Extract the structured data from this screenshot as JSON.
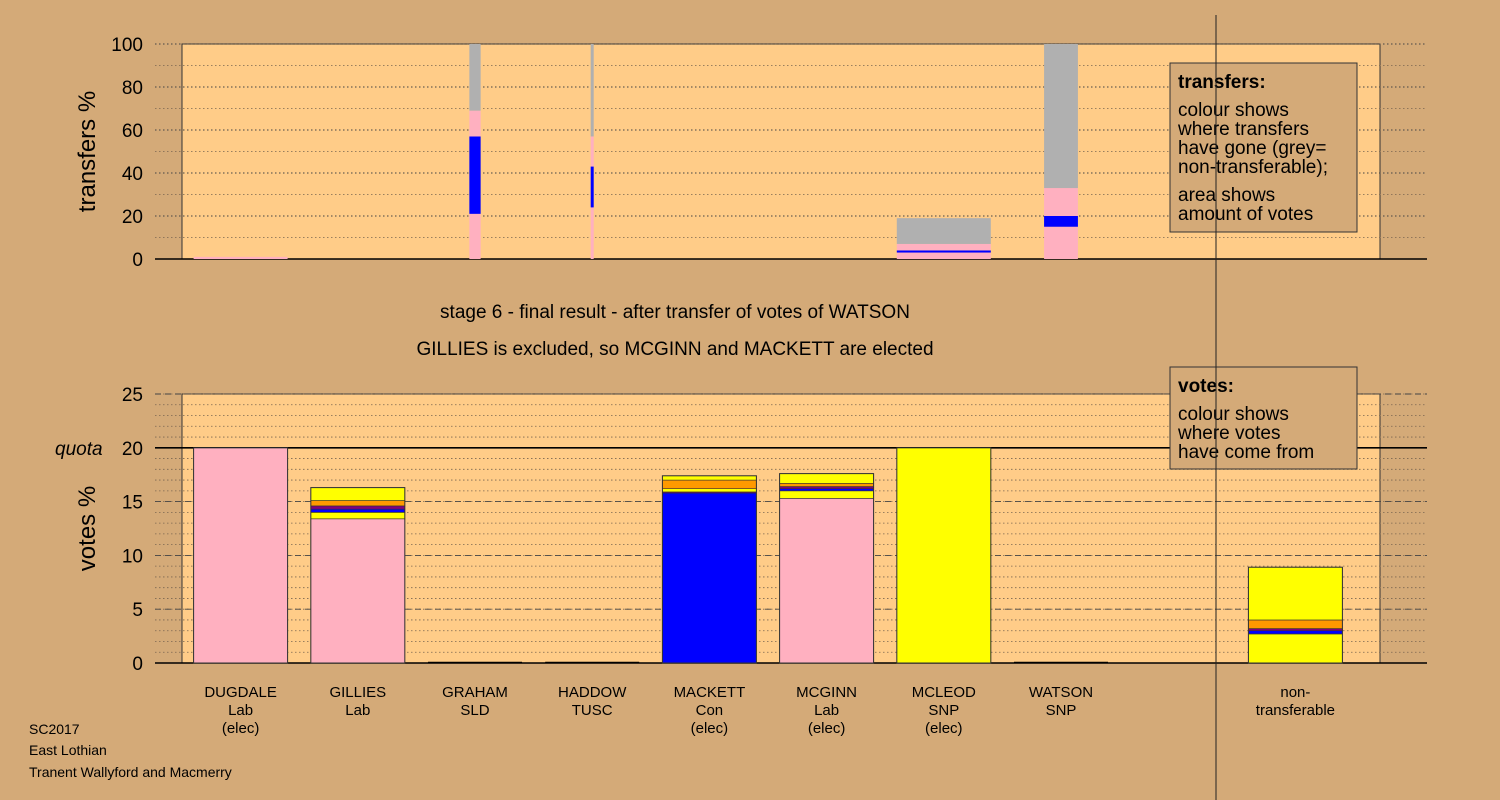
{
  "colors": {
    "background": "#d4aa78",
    "plot_bg": "#ffcc88",
    "Lab": "#ffb0c0",
    "Con": "#0000ff",
    "SNP": "#ffff00",
    "SLD": "#ff9900",
    "TUSC": "#800080",
    "nontransferable": "#b0b0b0"
  },
  "chart_data": [
    {
      "type": "bar",
      "name": "transfers",
      "ylabel": "transfers %",
      "ylim": [
        0,
        100
      ],
      "yticks": [
        "0",
        "20",
        "40",
        "60",
        "80",
        "100"
      ],
      "legend": {
        "title": "transfers:",
        "lines1": [
          "colour shows",
          "where transfers",
          "have gone (grey=",
          "non-transferable);"
        ],
        "lines2": [
          "area shows",
          "amount of votes"
        ]
      },
      "columns": [
        {
          "candidate": "DUGDALE",
          "width": 1.0,
          "segments": [
            {
              "party": "Lab",
              "from": 0,
              "to": 1
            }
          ]
        },
        {
          "candidate": "GRAHAM",
          "width": 0.12,
          "segments": [
            {
              "party": "Lab",
              "from": 0,
              "to": 21
            },
            {
              "party": "Con",
              "from": 21,
              "to": 57
            },
            {
              "party": "Lab",
              "from": 57,
              "to": 69
            },
            {
              "party": "nontransferable",
              "from": 69,
              "to": 100
            }
          ]
        },
        {
          "candidate": "HADDOW",
          "width": 0.03,
          "segments": [
            {
              "party": "Lab",
              "from": 0,
              "to": 24
            },
            {
              "party": "Con",
              "from": 24,
              "to": 43
            },
            {
              "party": "Lab",
              "from": 43,
              "to": 57
            },
            {
              "party": "nontransferable",
              "from": 57,
              "to": 100
            }
          ]
        },
        {
          "candidate": "MCLEOD",
          "width": 1.0,
          "segments": [
            {
              "party": "Lab",
              "from": 0,
              "to": 3
            },
            {
              "party": "Con",
              "from": 3,
              "to": 4
            },
            {
              "party": "Lab",
              "from": 4,
              "to": 7
            },
            {
              "party": "nontransferable",
              "from": 7,
              "to": 19
            }
          ]
        },
        {
          "candidate": "WATSON",
          "width": 0.36,
          "segments": [
            {
              "party": "Lab",
              "from": 0,
              "to": 15
            },
            {
              "party": "Con",
              "from": 15,
              "to": 20
            },
            {
              "party": "Lab",
              "from": 20,
              "to": 33
            },
            {
              "party": "nontransferable",
              "from": 33,
              "to": 100
            }
          ]
        }
      ]
    },
    {
      "type": "bar",
      "name": "votes",
      "ylabel": "votes %",
      "ylim": [
        0,
        25
      ],
      "yticks": [
        "0",
        "5",
        "10",
        "15",
        "20",
        "25"
      ],
      "quota": 20,
      "quota_label": "quota",
      "legend": {
        "title": "votes:",
        "lines1": [
          "colour shows",
          "where votes",
          "have come from"
        ],
        "lines2": []
      },
      "categories": [
        {
          "lines": [
            "DUGDALE",
            "Lab",
            "(elec)"
          ]
        },
        {
          "lines": [
            "GILLIES",
            "Lab"
          ]
        },
        {
          "lines": [
            "GRAHAM",
            "SLD"
          ]
        },
        {
          "lines": [
            "HADDOW",
            "TUSC"
          ]
        },
        {
          "lines": [
            "MACKETT",
            "Con",
            "(elec)"
          ]
        },
        {
          "lines": [
            "MCGINN",
            "Lab",
            "(elec)"
          ]
        },
        {
          "lines": [
            "MCLEOD",
            "SNP",
            "(elec)"
          ]
        },
        {
          "lines": [
            "WATSON",
            "SNP"
          ]
        },
        {
          "lines": []
        },
        {
          "lines": [
            "non-",
            "transferable"
          ]
        }
      ],
      "bars": [
        [
          {
            "party": "Lab",
            "value": 20.0
          }
        ],
        [
          {
            "party": "Lab",
            "value": 13.4
          },
          {
            "party": "SNP",
            "value": 0.6
          },
          {
            "party": "Con",
            "value": 0.3
          },
          {
            "party": "TUSC",
            "value": 0.3
          },
          {
            "party": "SLD",
            "value": 0.5
          },
          {
            "party": "SNP",
            "value": 1.2
          }
        ],
        [
          {
            "party": "SLD",
            "value": 0.0
          }
        ],
        [
          {
            "party": "TUSC",
            "value": 0.0
          }
        ],
        [
          {
            "party": "Con",
            "value": 15.8
          },
          {
            "party": "TUSC",
            "value": 0.1
          },
          {
            "party": "SNP",
            "value": 0.3
          },
          {
            "party": "SLD",
            "value": 0.8
          },
          {
            "party": "SNP",
            "value": 0.4
          }
        ],
        [
          {
            "party": "Lab",
            "value": 15.3
          },
          {
            "party": "SNP",
            "value": 0.7
          },
          {
            "party": "Con",
            "value": 0.2
          },
          {
            "party": "TUSC",
            "value": 0.2
          },
          {
            "party": "SLD",
            "value": 0.3
          },
          {
            "party": "SNP",
            "value": 0.9
          }
        ],
        [
          {
            "party": "SNP",
            "value": 20.0
          }
        ],
        [
          {
            "party": "SNP",
            "value": 0.0
          }
        ],
        [],
        [
          {
            "party": "SNP",
            "value": 2.7
          },
          {
            "party": "Con",
            "value": 0.3
          },
          {
            "party": "TUSC",
            "value": 0.2
          },
          {
            "party": "SLD",
            "value": 0.8
          },
          {
            "party": "SNP",
            "value": 4.9
          }
        ]
      ]
    }
  ],
  "stage_title": "stage 6 - final result - after transfer of votes of WATSON",
  "result_text": "GILLIES is excluded, so MCGINN and MACKETT are elected",
  "footer": [
    "SC2017",
    "East Lothian",
    "Tranent Wallyford and Macmerry"
  ]
}
